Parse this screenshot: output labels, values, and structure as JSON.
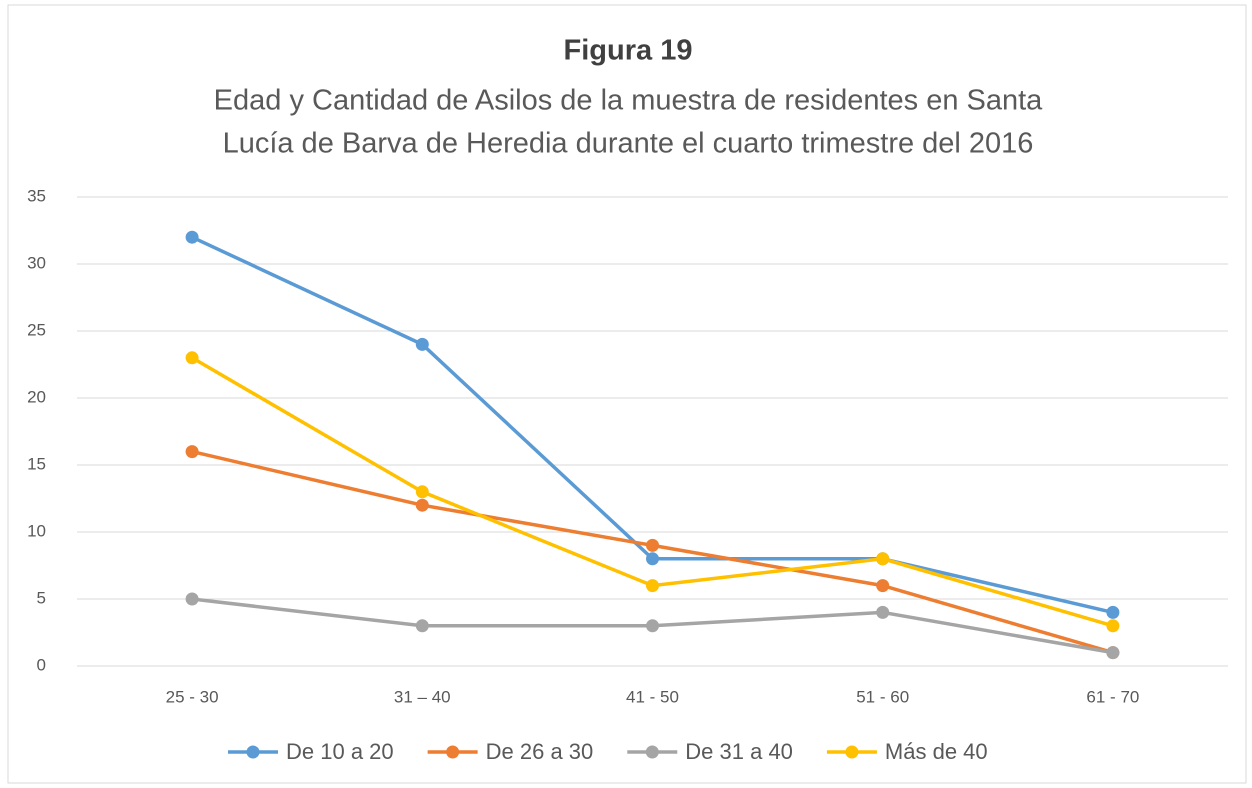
{
  "chart_data": {
    "type": "line",
    "title": "Figura 19",
    "subtitle": [
      "Edad y Cantidad de Asilos de la muestra de residentes en Santa",
      "Lucía de Barva de Heredia durante el cuarto trimestre del 2016"
    ],
    "categories": [
      "25 - 30",
      "31 – 40",
      "41 - 50",
      "51 - 60",
      "61 - 70"
    ],
    "series": [
      {
        "name": "De 10 a 20",
        "color": "#5b9bd5",
        "values": [
          32,
          24,
          8,
          8,
          4
        ]
      },
      {
        "name": "De 26 a 30",
        "color": "#ed7d31",
        "values": [
          16,
          12,
          9,
          6,
          1
        ]
      },
      {
        "name": "De 31 a 40",
        "color": "#a5a5a5",
        "values": [
          5,
          3,
          3,
          4,
          1
        ]
      },
      {
        "name": "Más de 40",
        "color": "#ffc000",
        "values": [
          23,
          13,
          6,
          8,
          3
        ]
      }
    ],
    "ylim": [
      0,
      35
    ],
    "yticks": [
      0,
      5,
      10,
      15,
      20,
      25,
      30,
      35
    ],
    "grid": true,
    "legend": "bottom"
  }
}
